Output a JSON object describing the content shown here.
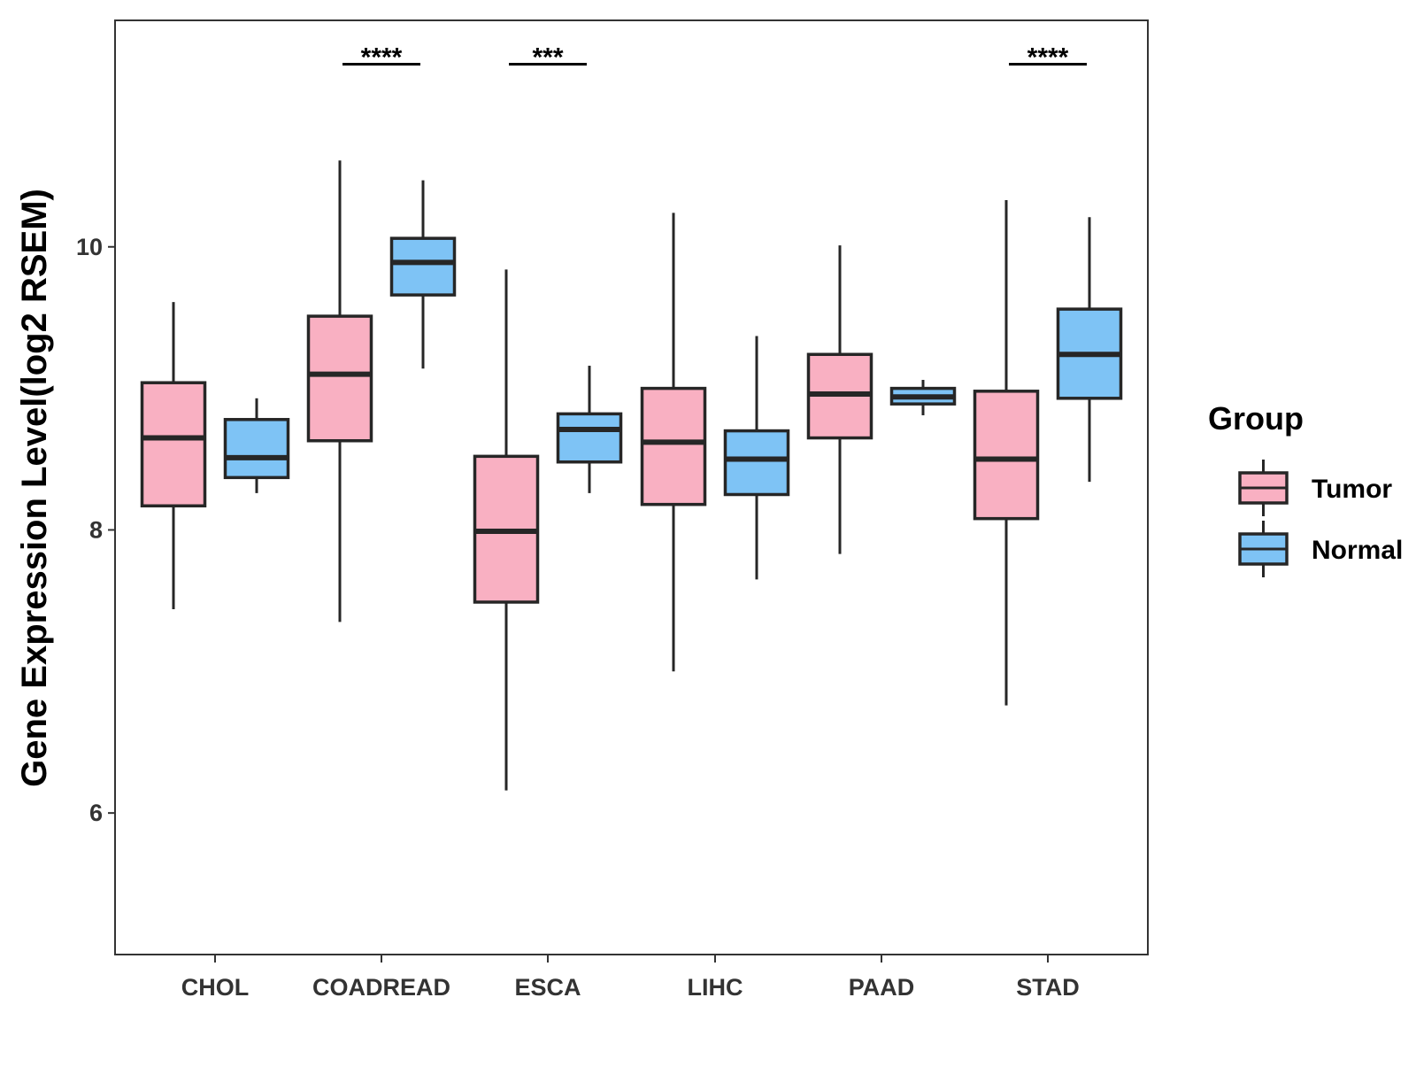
{
  "chart_data": {
    "type": "box",
    "title": "",
    "xlabel": "",
    "ylabel": "Gene Expression Level(log2 RSEM)",
    "ylim": [
      5.0,
      11.6
    ],
    "yticks": [
      6,
      8,
      10
    ],
    "ytick_labels": [
      "6",
      "8",
      "10"
    ],
    "grid": false,
    "categories": [
      "CHOL",
      "COADREAD",
      "ESCA",
      "LIHC",
      "PAAD",
      "STAD"
    ],
    "legend": {
      "title": "Group",
      "position": "right",
      "entries": [
        {
          "name": "Tumor",
          "color": "#F9B0C2"
        },
        {
          "name": "Normal",
          "color": "#7EC3F5"
        }
      ]
    },
    "series": [
      {
        "name": "Tumor",
        "color": "#F9B0C2",
        "boxes": [
          {
            "category": "CHOL",
            "whisker_low": 7.44,
            "q1": 8.17,
            "median": 8.65,
            "q3": 9.04,
            "whisker_high": 9.61
          },
          {
            "category": "COADREAD",
            "whisker_low": 7.35,
            "q1": 8.63,
            "median": 9.1,
            "q3": 9.51,
            "whisker_high": 10.61
          },
          {
            "category": "ESCA",
            "whisker_low": 6.16,
            "q1": 7.49,
            "median": 7.99,
            "q3": 8.52,
            "whisker_high": 9.84
          },
          {
            "category": "LIHC",
            "whisker_low": 7.0,
            "q1": 8.18,
            "median": 8.62,
            "q3": 9.0,
            "whisker_high": 10.24
          },
          {
            "category": "PAAD",
            "whisker_low": 7.83,
            "q1": 8.65,
            "median": 8.96,
            "q3": 9.24,
            "whisker_high": 10.01
          },
          {
            "category": "STAD",
            "whisker_low": 6.76,
            "q1": 8.08,
            "median": 8.5,
            "q3": 8.98,
            "whisker_high": 10.33
          }
        ]
      },
      {
        "name": "Normal",
        "color": "#7EC3F5",
        "boxes": [
          {
            "category": "CHOL",
            "whisker_low": 8.26,
            "q1": 8.37,
            "median": 8.51,
            "q3": 8.78,
            "whisker_high": 8.93
          },
          {
            "category": "COADREAD",
            "whisker_low": 9.14,
            "q1": 9.66,
            "median": 9.89,
            "q3": 10.06,
            "whisker_high": 10.47
          },
          {
            "category": "ESCA",
            "whisker_low": 8.26,
            "q1": 8.48,
            "median": 8.71,
            "q3": 8.82,
            "whisker_high": 9.16
          },
          {
            "category": "LIHC",
            "whisker_low": 7.65,
            "q1": 8.25,
            "median": 8.5,
            "q3": 8.7,
            "whisker_high": 9.37
          },
          {
            "category": "PAAD",
            "whisker_low": 8.81,
            "q1": 8.89,
            "median": 8.94,
            "q3": 9.0,
            "whisker_high": 9.06
          },
          {
            "category": "STAD",
            "whisker_low": 8.34,
            "q1": 8.93,
            "median": 9.24,
            "q3": 9.56,
            "whisker_high": 10.21
          }
        ]
      }
    ],
    "significance": [
      {
        "category": "COADREAD",
        "label": "****",
        "y": 11.29
      },
      {
        "category": "ESCA",
        "label": "***",
        "y": 11.29
      },
      {
        "category": "STAD",
        "label": "****",
        "y": 11.29
      }
    ]
  }
}
